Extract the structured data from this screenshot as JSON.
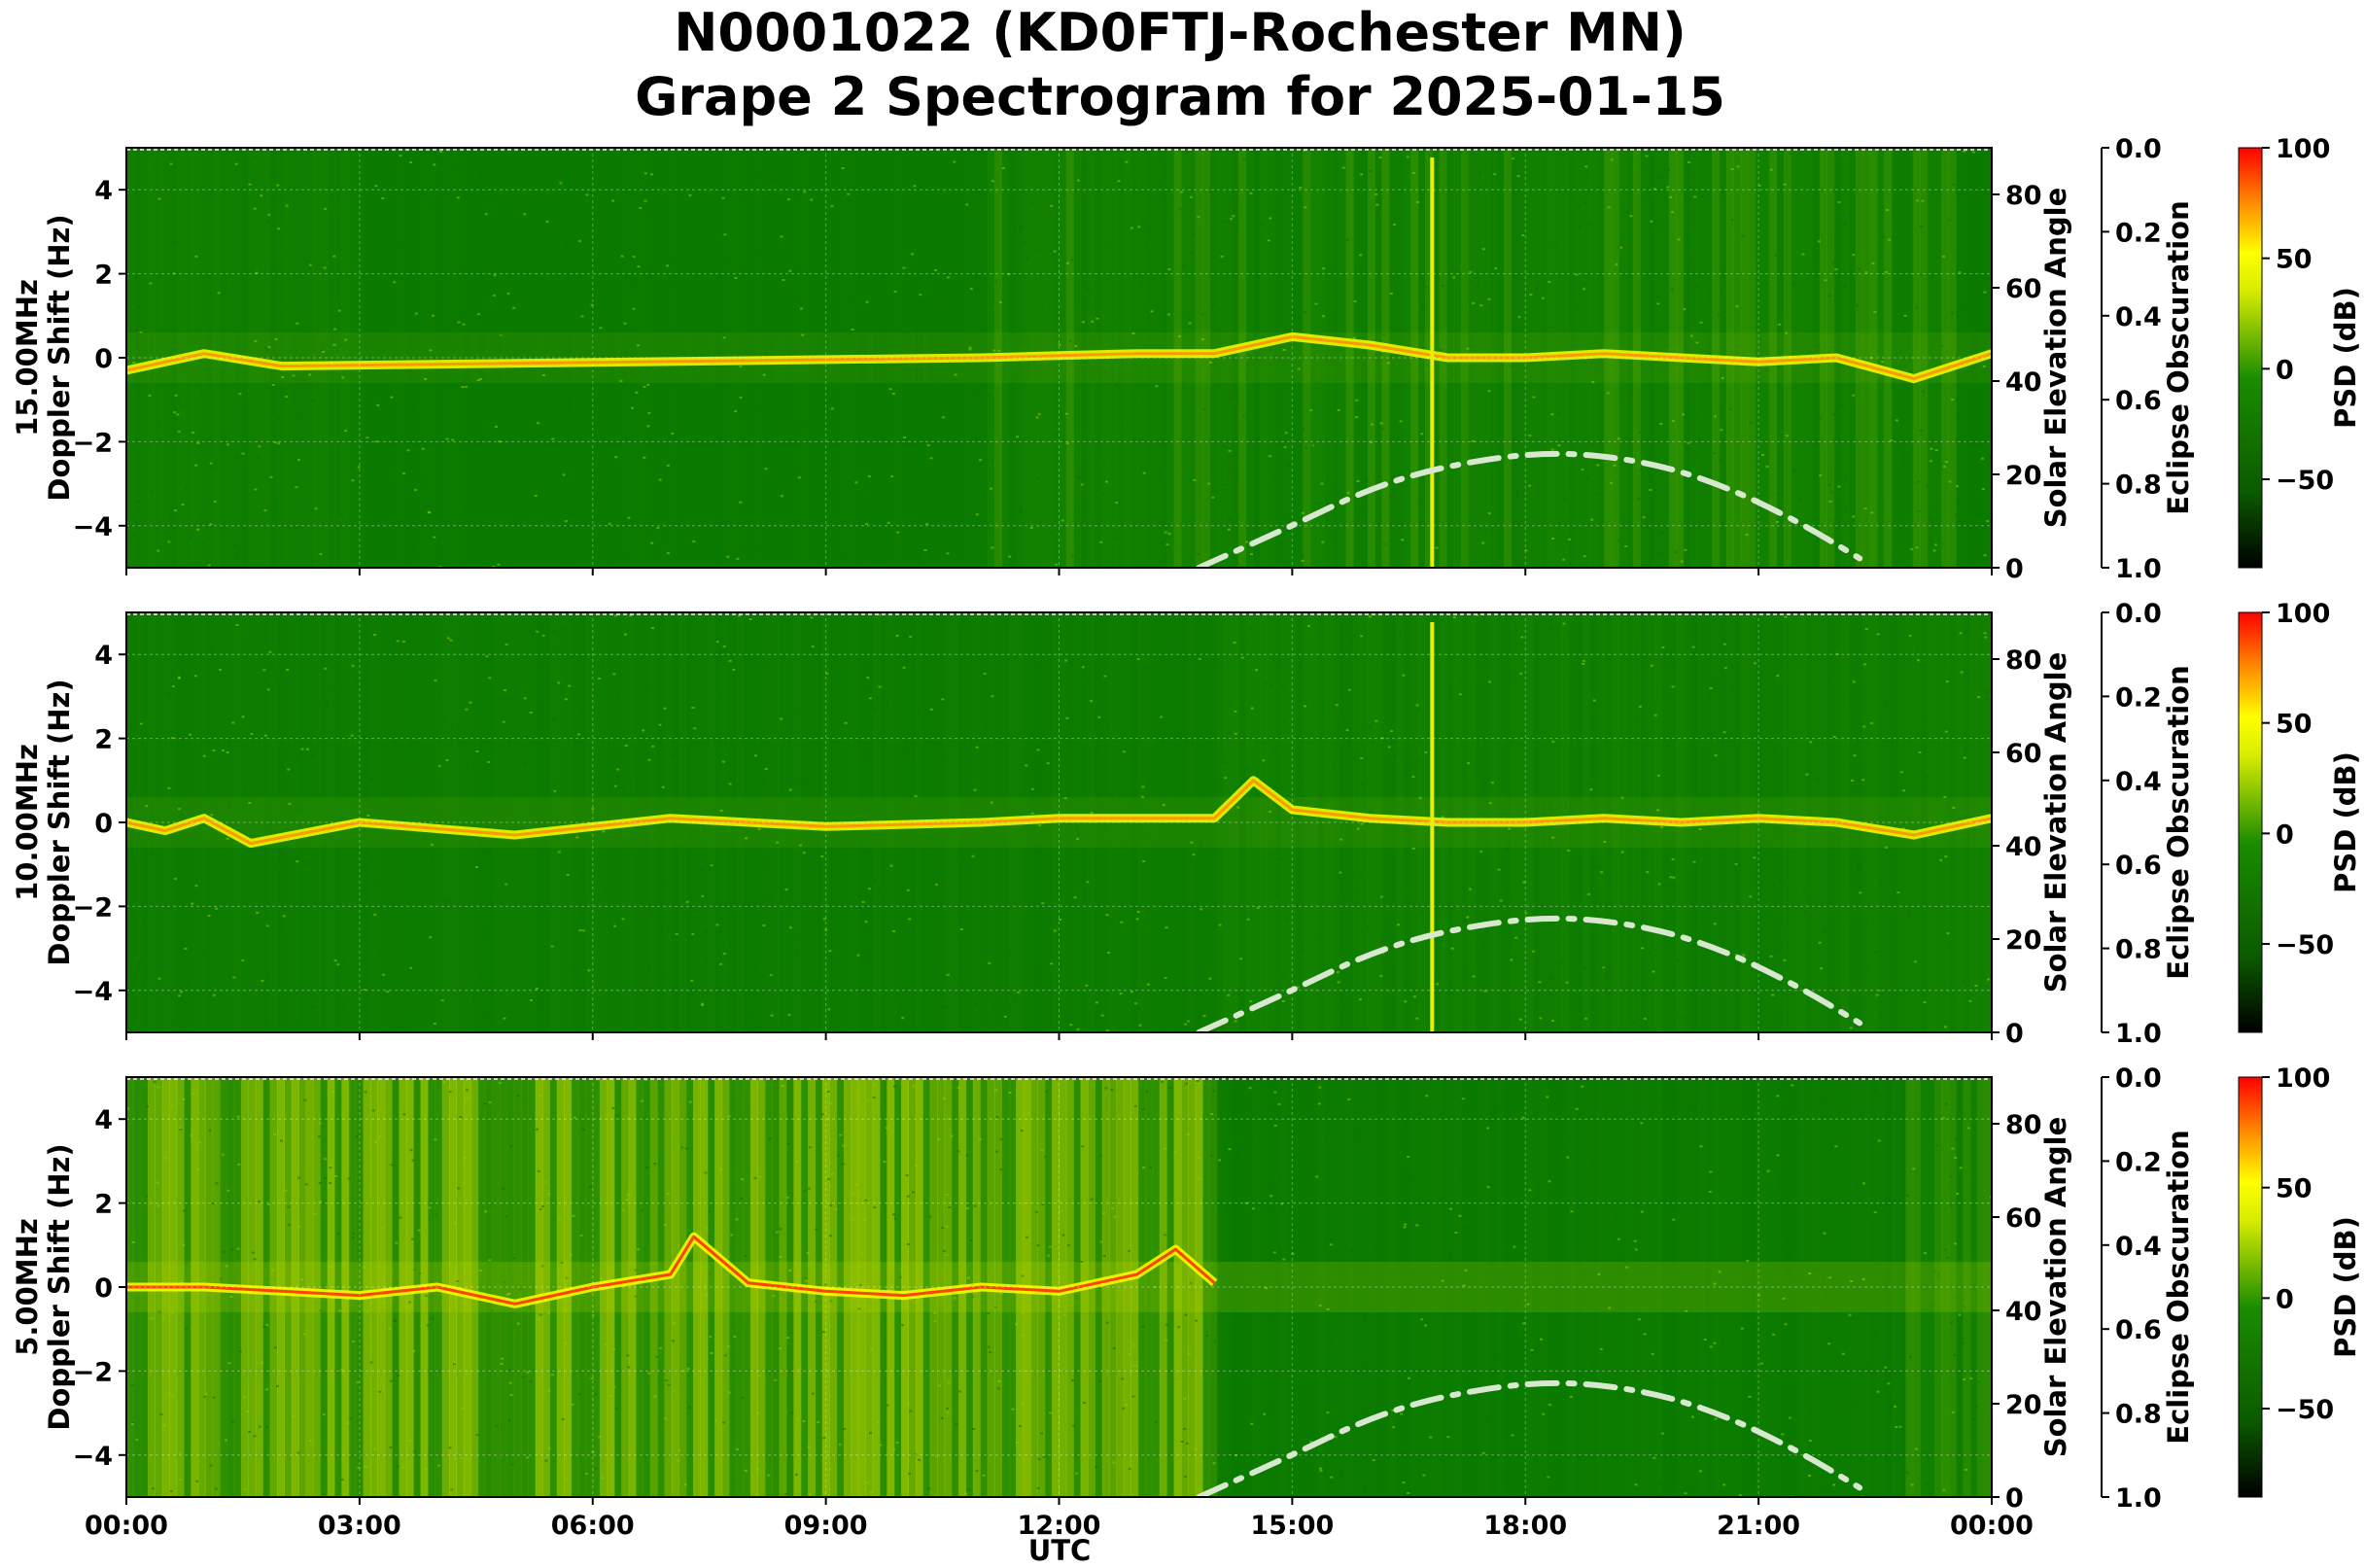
{
  "figure": {
    "title_line1": "N0001022 (KD0FTJ-Rochester MN)",
    "title_line2": "Grape 2 Spectrogram for 2025-01-15",
    "xlabel": "UTC"
  },
  "colors": {
    "spectro_base": "#0a7a00",
    "psd_colormap": [
      "#000000",
      "#0b5a00",
      "#1a8c00",
      "#d8ec00",
      "#ffff00",
      "#ff8000",
      "#ff0000"
    ],
    "solar_curve": "#d8e8d0"
  },
  "chart_data": [
    {
      "type": "heatmap",
      "name": "15.00MHz",
      "ylabel": "15.00MHz\nDoppler Shift (Hz)",
      "ylabel_line1": "15.00MHz",
      "ylabel_line2": "Doppler Shift (Hz)",
      "right_label": "Solar Elevation Angle",
      "eclipse_label": "Eclipse Obscuration",
      "colorbar_label": "PSD (dB)",
      "ylim": [
        -5,
        5
      ],
      "right_ylim": [
        0,
        90
      ],
      "eclipse_ylim": [
        1.0,
        0.0
      ],
      "colorbar_range": [
        -90,
        100
      ],
      "x_ticks": [
        "00:00",
        "03:00",
        "06:00",
        "09:00",
        "12:00",
        "15:00",
        "18:00",
        "21:00",
        "00:00"
      ],
      "y_ticks": [
        "4",
        "2",
        "0",
        "−2",
        "−4"
      ],
      "right_ticks": [
        "80",
        "60",
        "40",
        "20",
        "0"
      ],
      "eclipse_ticks": [
        "0.0",
        "0.2",
        "0.4",
        "0.6",
        "0.8",
        "1.0"
      ],
      "colorbar_ticks": [
        "100",
        "50",
        "0",
        "−50"
      ],
      "solar_elevation": {
        "hours": [
          13.8,
          15,
          16,
          17,
          18.3,
          19.5,
          20.5,
          21.5,
          22.3
        ],
        "deg": [
          0,
          9,
          17,
          22,
          25,
          23,
          18,
          10,
          2
        ]
      },
      "doppler_trace": {
        "hours": [
          0,
          1,
          2,
          11,
          12,
          13,
          14,
          15,
          16,
          17,
          18,
          19,
          20,
          21,
          22,
          23,
          24
        ],
        "hz": [
          -0.3,
          0.1,
          -0.2,
          0.0,
          0.05,
          0.1,
          0.1,
          0.5,
          0.3,
          0.0,
          0.0,
          0.1,
          0.0,
          -0.1,
          0.0,
          -0.5,
          0.1
        ]
      }
    },
    {
      "type": "heatmap",
      "name": "10.00MHz",
      "ylabel_line1": "10.00MHz",
      "ylabel_line2": "Doppler Shift (Hz)",
      "right_label": "Solar Elevation Angle",
      "eclipse_label": "Eclipse Obscuration",
      "colorbar_label": "PSD (dB)",
      "ylim": [
        -5,
        5
      ],
      "right_ylim": [
        0,
        90
      ],
      "eclipse_ylim": [
        1.0,
        0.0
      ],
      "colorbar_range": [
        -90,
        100
      ],
      "x_ticks": [
        "00:00",
        "03:00",
        "06:00",
        "09:00",
        "12:00",
        "15:00",
        "18:00",
        "21:00",
        "00:00"
      ],
      "y_ticks": [
        "4",
        "2",
        "0",
        "−2",
        "−4"
      ],
      "right_ticks": [
        "80",
        "60",
        "40",
        "20",
        "0"
      ],
      "eclipse_ticks": [
        "0.0",
        "0.2",
        "0.4",
        "0.6",
        "0.8",
        "1.0"
      ],
      "colorbar_ticks": [
        "100",
        "50",
        "0",
        "−50"
      ],
      "solar_elevation": {
        "hours": [
          13.8,
          15,
          16,
          17,
          18.3,
          19.5,
          20.5,
          21.5,
          22.3
        ],
        "deg": [
          0,
          9,
          17,
          22,
          25,
          23,
          18,
          10,
          2
        ]
      },
      "doppler_trace": {
        "hours": [
          0,
          0.5,
          1,
          1.6,
          3,
          5,
          7,
          9,
          11,
          12,
          13,
          14,
          14.5,
          15,
          16,
          17,
          18,
          19,
          20,
          21,
          22,
          23,
          24
        ],
        "hz": [
          0.0,
          -0.2,
          0.1,
          -0.5,
          0.0,
          -0.3,
          0.1,
          -0.1,
          0.0,
          0.1,
          0.1,
          0.1,
          1.0,
          0.3,
          0.1,
          0.0,
          0.0,
          0.1,
          0.0,
          0.1,
          0.0,
          -0.3,
          0.1
        ]
      }
    },
    {
      "type": "heatmap",
      "name": "5.00MHz",
      "ylabel_line1": "5.00MHz",
      "ylabel_line2": "Doppler Shift (Hz)",
      "right_label": "Solar Elevation Angle",
      "eclipse_label": "Eclipse Obscuration",
      "colorbar_label": "PSD (dB)",
      "ylim": [
        -5,
        5
      ],
      "right_ylim": [
        0,
        90
      ],
      "eclipse_ylim": [
        1.0,
        0.0
      ],
      "colorbar_range": [
        -90,
        100
      ],
      "x_ticks": [
        "00:00",
        "03:00",
        "06:00",
        "09:00",
        "12:00",
        "15:00",
        "18:00",
        "21:00",
        "00:00"
      ],
      "y_ticks": [
        "4",
        "2",
        "0",
        "−2",
        "−4"
      ],
      "right_ticks": [
        "80",
        "60",
        "40",
        "20",
        "0"
      ],
      "eclipse_ticks": [
        "0.0",
        "0.2",
        "0.4",
        "0.6",
        "0.8",
        "1.0"
      ],
      "colorbar_ticks": [
        "100",
        "50",
        "0",
        "−50"
      ],
      "solar_elevation": {
        "hours": [
          13.8,
          15,
          16,
          17,
          18.3,
          19.5,
          20.5,
          21.5,
          22.3
        ],
        "deg": [
          0,
          9,
          17,
          22,
          25,
          23,
          18,
          10,
          2
        ]
      },
      "doppler_trace": {
        "hours": [
          0,
          1,
          2,
          3,
          4,
          5,
          6,
          7,
          7.3,
          8,
          9,
          10,
          11,
          12,
          13,
          13.5,
          14
        ],
        "hz": [
          0.0,
          0.0,
          -0.1,
          -0.2,
          0.0,
          -0.4,
          0.0,
          0.3,
          1.2,
          0.1,
          -0.1,
          -0.2,
          0.0,
          -0.1,
          0.3,
          0.9,
          0.1
        ]
      }
    }
  ]
}
